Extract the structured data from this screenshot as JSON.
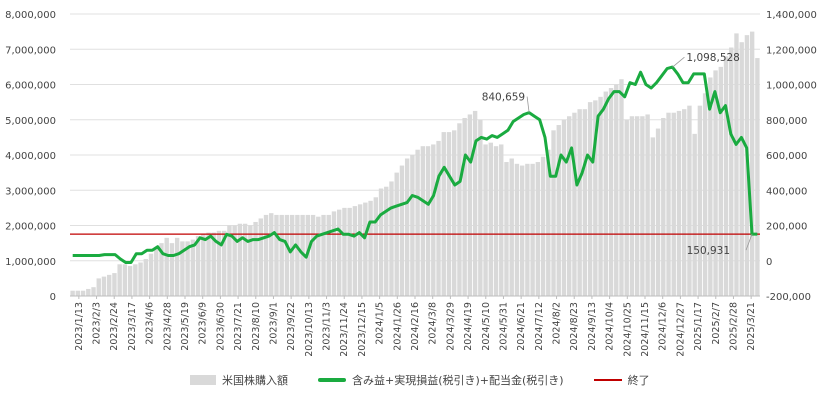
{
  "chart_data": {
    "type": "bar+line",
    "title": "",
    "left_axis": {
      "min": 0,
      "max": 8000000,
      "step": 1000000,
      "ticks": [
        "0",
        "1,000,000",
        "2,000,000",
        "3,000,000",
        "4,000,000",
        "5,000,000",
        "6,000,000",
        "7,000,000",
        "8,000,000"
      ]
    },
    "right_axis": {
      "min": -200000,
      "max": 1400000,
      "step": 200000,
      "ticks": [
        "-200,000",
        "0",
        "200,000",
        "400,000",
        "600,000",
        "800,000",
        "1,000,000",
        "1,200,000",
        "1,400,000"
      ]
    },
    "x_tick_labels": [
      "2023/1/13",
      "2023/2/3",
      "2023/2/24",
      "2023/3/17",
      "2023/4/6",
      "2023/4/28",
      "2023/5/19",
      "2023/6/9",
      "2023/6/30",
      "2023/7/21",
      "2023/8/10",
      "2023/9/1",
      "2023/9/22",
      "2023/10/13",
      "2023/11/3",
      "2023/11/24",
      "2023/12/15",
      "2024/1/5",
      "2024/1/26",
      "2024/2/16",
      "2024/3/8",
      "2024/3/29",
      "2024/4/19",
      "2024/5/10",
      "2024/5/31",
      "2024/6/21",
      "2024/7/12",
      "2024/8/2",
      "2024/8/23",
      "2024/9/13",
      "2024/10/4",
      "2024/10/25",
      "2024/11/15",
      "2024/12/6",
      "2024/12/27",
      "2025/1/17",
      "2025/2/7",
      "2025/2/28",
      "2025/3/21"
    ],
    "series": [
      {
        "name": "米国株購入額",
        "type": "bar",
        "axis": "left",
        "color": "#d9d9d9",
        "values": [
          150000,
          150000,
          150000,
          200000,
          250000,
          500000,
          550000,
          600000,
          650000,
          900000,
          900000,
          850000,
          900000,
          950000,
          1050000,
          1200000,
          1350000,
          1500000,
          1650000,
          1500000,
          1650000,
          1550000,
          1550000,
          1600000,
          1700000,
          1750000,
          1800000,
          1800000,
          1850000,
          1850000,
          2000000,
          2000000,
          2050000,
          2050000,
          2000000,
          2100000,
          2200000,
          2300000,
          2350000,
          2300000,
          2300000,
          2300000,
          2300000,
          2300000,
          2300000,
          2300000,
          2300000,
          2250000,
          2300000,
          2300000,
          2400000,
          2450000,
          2500000,
          2500000,
          2550000,
          2600000,
          2650000,
          2700000,
          2800000,
          3050000,
          3100000,
          3250000,
          3500000,
          3700000,
          3900000,
          4000000,
          4150000,
          4250000,
          4250000,
          4300000,
          4400000,
          4650000,
          4650000,
          4700000,
          4900000,
          5050000,
          5150000,
          5250000,
          5000000,
          4300000,
          4350000,
          4250000,
          4300000,
          3800000,
          3900000,
          3750000,
          3700000,
          3750000,
          3750000,
          3800000,
          3950000,
          4150000,
          4700000,
          4850000,
          5000000,
          5100000,
          5200000,
          5300000,
          5300000,
          5500000,
          5550000,
          5650000,
          5800000,
          5900000,
          6000000,
          6150000,
          5000000,
          5100000,
          5100000,
          5100000,
          5150000,
          4500000,
          4750000,
          5050000,
          5200000,
          5200000,
          5250000,
          5300000,
          5400000,
          4600000,
          5400000,
          5750000,
          6200000,
          6400000,
          6500000,
          6800000,
          7050000,
          7450000,
          7200000,
          7400000,
          7500000,
          6750000
        ]
      },
      {
        "name": "含み益+実現損益(税引き)+配当金(税引き)",
        "type": "line",
        "axis": "right",
        "color": "#1aab40",
        "values": [
          30000,
          30000,
          30000,
          30000,
          30000,
          30000,
          35000,
          35000,
          35000,
          10000,
          -10000,
          -10000,
          40000,
          40000,
          60000,
          60000,
          80000,
          40000,
          30000,
          30000,
          40000,
          60000,
          80000,
          90000,
          130000,
          120000,
          140000,
          110000,
          90000,
          150000,
          140000,
          110000,
          130000,
          110000,
          120000,
          120000,
          130000,
          140000,
          160000,
          120000,
          110000,
          50000,
          90000,
          50000,
          20000,
          110000,
          140000,
          150000,
          160000,
          170000,
          180000,
          150000,
          150000,
          140000,
          160000,
          130000,
          220000,
          220000,
          260000,
          280000,
          300000,
          310000,
          320000,
          330000,
          370000,
          360000,
          340000,
          320000,
          370000,
          480000,
          530000,
          480000,
          430000,
          450000,
          600000,
          560000,
          680000,
          700000,
          690000,
          710000,
          700000,
          720000,
          740000,
          790000,
          810000,
          830000,
          840659,
          820000,
          800000,
          700000,
          480000,
          480000,
          600000,
          560000,
          640000,
          430000,
          500000,
          600000,
          560000,
          820000,
          860000,
          920000,
          960000,
          960000,
          930000,
          1010000,
          1000000,
          1070000,
          1000000,
          980000,
          1010000,
          1050000,
          1090000,
          1098528,
          1060000,
          1010000,
          1010000,
          1060000,
          1060000,
          1060000,
          860000,
          960000,
          840000,
          880000,
          720000,
          660000,
          700000,
          640000,
          150931,
          150931
        ]
      },
      {
        "name": "終了",
        "type": "hline",
        "axis": "right",
        "color": "#c00000",
        "value": 150931
      }
    ],
    "annotations": [
      {
        "text": "840,659",
        "index": 86,
        "series": 1
      },
      {
        "text": "1,098,528",
        "index": 113,
        "series": 1
      },
      {
        "text": "150,931",
        "index": 128,
        "series": 1
      }
    ],
    "grid": true,
    "legend_position": "bottom"
  }
}
